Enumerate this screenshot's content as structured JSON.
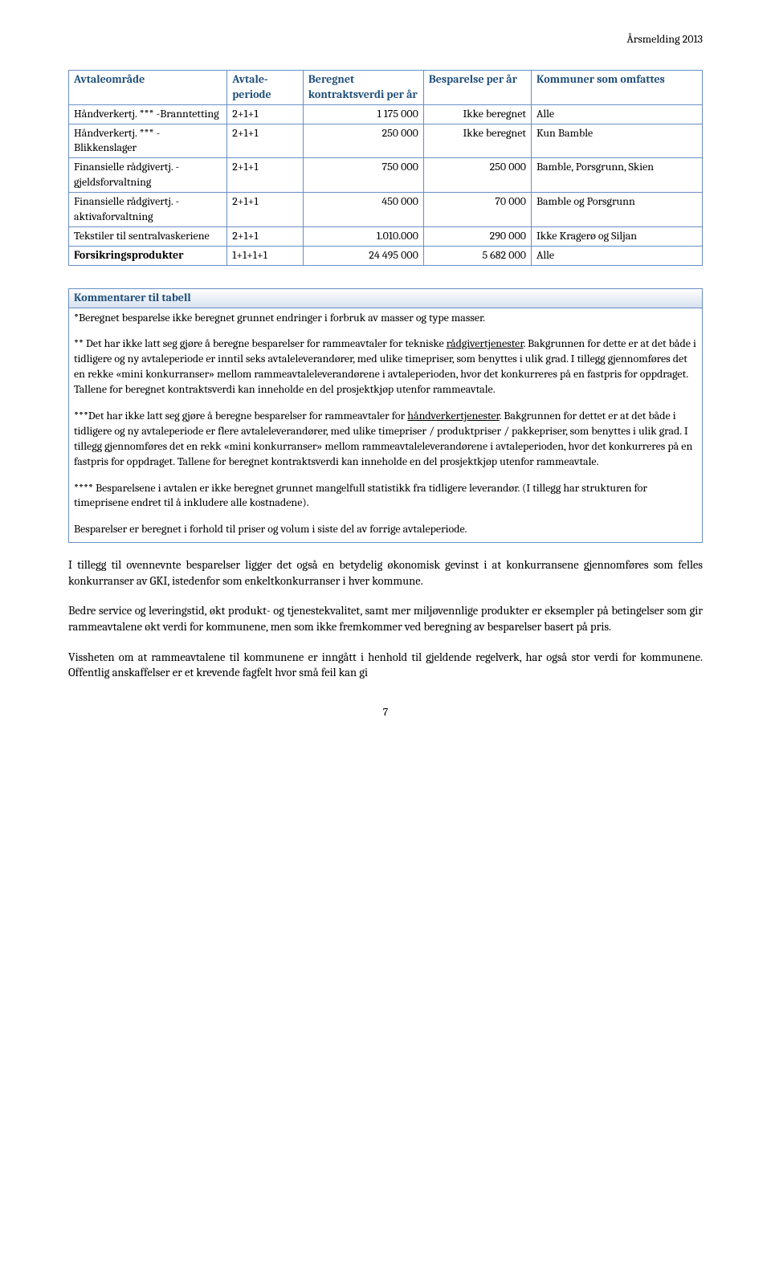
{
  "header": {
    "title": "Årsmelding 2013"
  },
  "table1": {
    "headers": {
      "c1": "Avtaleområde",
      "c2": "Avtale-periode",
      "c3": "Beregnet kontraktsverdi per år",
      "c4": "Besparelse per år",
      "c5": "Kommuner som omfattes"
    },
    "rows": [
      {
        "c1": "Håndverkertj. *** -Branntetting",
        "c2": "2+1+1",
        "c3": "1 175 000",
        "c4": "Ikke beregnet",
        "c5": "Alle"
      },
      {
        "c1": "Håndverkertj. *** -Blikkenslager",
        "c2": "2+1+1",
        "c3": "250 000",
        "c4": "Ikke beregnet",
        "c5": "Kun Bamble"
      },
      {
        "c1": "Finansielle rådgivertj. -gjeldsforvaltning",
        "c2": "2+1+1",
        "c3": "750 000",
        "c4": "250 000",
        "c5": "Bamble, Porsgrunn, Skien"
      },
      {
        "c1": "Finansielle rådgivertj. -aktivaforvaltning",
        "c2": "2+1+1",
        "c3": "450 000",
        "c4": "70 000",
        "c5": "Bamble og Porsgrunn"
      },
      {
        "c1": "Tekstiler til sentralvaskeriene",
        "c2": "2+1+1",
        "c3": "1.010.000",
        "c4": "290 000",
        "c5": "Ikke Kragerø og Siljan"
      },
      {
        "c1": "Forsikringsprodukter",
        "c2": "1+1+1+1",
        "c3": "24 495 000",
        "c4": "5 682 000",
        "c5": "Alle"
      }
    ]
  },
  "comments": {
    "title": "Kommentarer til tabell",
    "p1": "*Beregnet besparelse ikke beregnet grunnet endringer i forbruk av masser og type masser.",
    "p2a": "** Det har ikke latt seg gjøre å beregne besparelser for rammeavtaler for tekniske ",
    "p2u": "rådgivertjenester",
    "p2b": ". Bakgrunnen for dette er at det både i tidligere og ny avtaleperiode er inntil seks avtaleleverandører, med ulike timepriser, som benyttes i ulik grad. I tillegg gjennomføres det en rekke «mini konkurranser» mellom rammeavtaleleverandørene i avtaleperioden, hvor det konkurreres på en fastpris for oppdraget. Tallene for beregnet kontraktsverdi kan inneholde en del prosjektkjøp utenfor rammeavtale.",
    "p3a": "***Det har ikke latt seg gjøre å beregne besparelser for rammeavtaler for ",
    "p3u": "håndverkertjenester",
    "p3b": ". Bakgrunnen for dettet er at det både i tidligere og ny avtaleperiode er flere avtaleleverandører, med ulike timepriser / produktpriser / pakkepriser, som benyttes i ulik grad. I tillegg gjennomføres det en rekk «mini konkurranser» mellom rammeavtaleleverandørene i avtaleperioden, hvor det konkurreres på en fastpris for oppdraget. Tallene for beregnet kontraktsverdi kan inneholde en del prosjektkjøp utenfor rammeavtale.",
    "p4": "**** Besparelsene i avtalen er ikke beregnet grunnet mangelfull statistikk fra tidligere leverandør. (I tillegg har strukturen for timeprisene endret til å inkludere alle kostnadene).",
    "p5": "Besparelser er beregnet i forhold til priser og volum i siste del av forrige avtaleperiode."
  },
  "body": {
    "p1": "I tillegg til ovennevnte besparelser ligger det også en betydelig økonomisk gevinst i at konkurransene gjennomføres som felles konkurranser av GKI, istedenfor som enkeltkonkurranser i hver kommune.",
    "p2": "Bedre service og leveringstid, økt produkt- og tjenestekvalitet, samt mer miljøvennlige produkter er eksempler på betingelser som gir rammeavtalene økt verdi for kommunene, men som ikke fremkommer ved beregning av besparelser basert på pris.",
    "p3": "Vissheten om at rammeavtalene til kommunene er inngått i henhold til gjeldende regelverk, har også stor verdi for kommunene. Offentlig anskaffelser er et krevende fagfelt hvor små feil kan gi"
  },
  "page_number": "7"
}
